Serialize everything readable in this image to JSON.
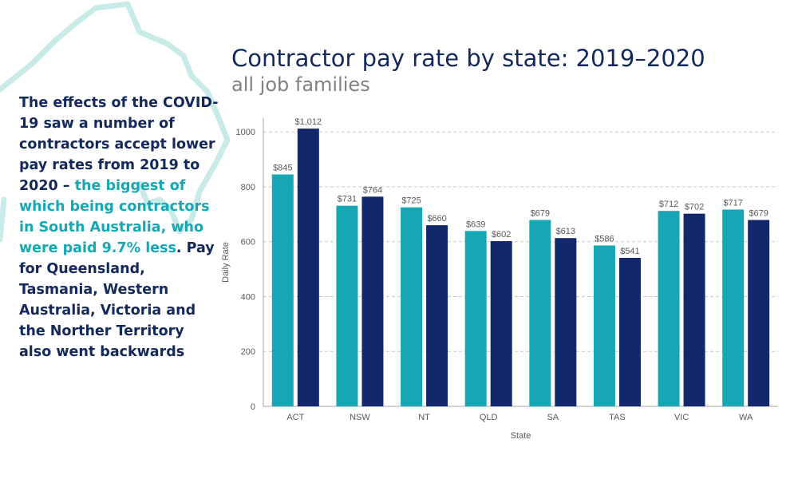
{
  "title": "Contractor pay rate by state: 2019–2020",
  "subtitle": "all job families",
  "side_text": {
    "part1": "The effects of the COVID-19 saw a number of contractors accept lower pay rates from 2019 to 2020 – ",
    "highlight": "the biggest of which being contractors in South Australia, who were paid 9.7% less",
    "part2": ". Pay for Queensland, Tasmania, Western Australia, Victoria and the Norther Territory also went backwards"
  },
  "colors": {
    "series_2019": "#16a7b4",
    "series_2020": "#13286b",
    "text": "#13285b",
    "accent": "#16a7b4",
    "map_outline": "#c8ebe8"
  },
  "chart_data": {
    "type": "bar",
    "categories": [
      "ACT",
      "NSW",
      "NT",
      "QLD",
      "SA",
      "TAS",
      "VIC",
      "WA"
    ],
    "series": [
      {
        "values": [
          845,
          731,
          725,
          639,
          679,
          586,
          712,
          717
        ],
        "labels": [
          "$845",
          "$731",
          "$725",
          "$639",
          "$679",
          "$586",
          "$712",
          "$717"
        ]
      },
      {
        "values": [
          1012,
          764,
          660,
          602,
          613,
          541,
          702,
          679
        ],
        "labels": [
          "$1,012",
          "$764",
          "$660",
          "$602",
          "$613",
          "$541",
          "$702",
          "$679"
        ]
      }
    ],
    "xlabel": "State",
    "ylabel": "Daily Rate",
    "ylim": [
      0,
      1000
    ],
    "yticks": [
      0,
      200,
      400,
      600,
      800,
      1000
    ],
    "grid": true,
    "legend": false
  }
}
